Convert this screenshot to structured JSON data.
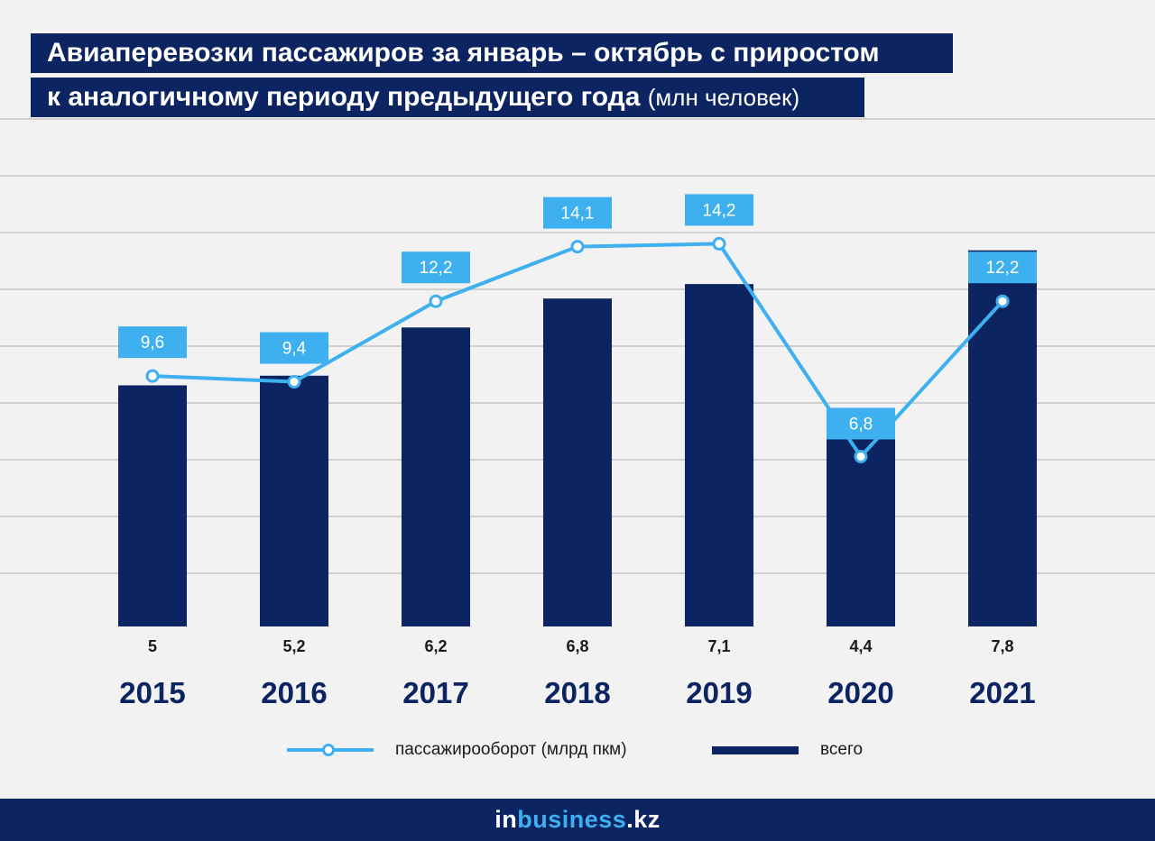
{
  "header": {
    "title_line1": "Авиаперевозки пассажиров за январь – октябрь с приростом",
    "title_line2": "к аналогичному периоду предыдущего года",
    "title_unit": "(млн человек)"
  },
  "chart_data": {
    "type": "bar",
    "categories": [
      "2015",
      "2016",
      "2017",
      "2018",
      "2019",
      "2020",
      "2021"
    ],
    "series": [
      {
        "name": "всего",
        "kind": "bar",
        "color": "#0c2461",
        "values": [
          5,
          5.2,
          6.2,
          6.8,
          7.1,
          4.4,
          7.8
        ]
      },
      {
        "name": "пассажирооборот (млрд пкм)",
        "kind": "line",
        "color": "#3eb0ef",
        "values": [
          9.6,
          9.4,
          12.2,
          14.1,
          14.2,
          6.8,
          12.2
        ]
      }
    ],
    "bar_labels": [
      "5",
      "5,2",
      "6,2",
      "6,8",
      "7,1",
      "4,4",
      "7,8"
    ],
    "line_labels": [
      "9,6",
      "9,4",
      "12,2",
      "14,1",
      "14,2",
      "6,8",
      "12,2"
    ],
    "grid": true,
    "legend_position": "bottom",
    "colors": {
      "bar": "#0c2461",
      "line": "#3eb0ef",
      "grid": "#d0d0d0"
    }
  },
  "legend": {
    "line_label": "пассажирооборот (млрд пкм)",
    "bar_label": "всего"
  },
  "footer": {
    "brand_in": "in",
    "brand_business": "business",
    "brand_kz": ".kz"
  }
}
